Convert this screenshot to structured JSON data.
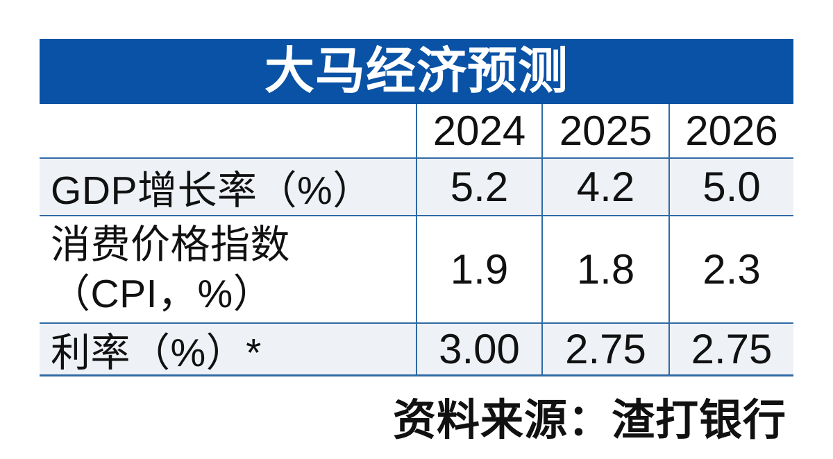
{
  "table": {
    "title": "大马经济预测",
    "years": [
      "2024",
      "2025",
      "2026"
    ],
    "rows": [
      {
        "label": "GDP增长率（%）",
        "values": [
          "5.2",
          "4.2",
          "5.0"
        ]
      },
      {
        "label": "消费价格指数",
        "label2": "（CPI，%）",
        "values": [
          "1.9",
          "1.8",
          "2.3"
        ]
      },
      {
        "label": "利率（%）*",
        "values": [
          "3.00",
          "2.75",
          "2.75"
        ]
      }
    ],
    "source": "资料来源：渣打银行"
  },
  "colors": {
    "banner_blue": "#0a52a5",
    "border_blue": "#2e6aa5",
    "row_shade": "#eef1f6",
    "text": "#111111"
  },
  "chart_data": {
    "type": "table",
    "title": "大马经济预测",
    "columns": [
      "",
      "2024",
      "2025",
      "2026"
    ],
    "rows": [
      [
        "GDP增长率（%）",
        "5.2",
        "4.2",
        "5.0"
      ],
      [
        "消费价格指数（CPI，%）",
        "1.9",
        "1.8",
        "2.3"
      ],
      [
        "利率（%）*",
        "3.00",
        "2.75",
        "2.75"
      ]
    ],
    "source": "资料来源：渣打银行",
    "legend_position": "none",
    "grid": "horizontal-and-column-separators"
  }
}
